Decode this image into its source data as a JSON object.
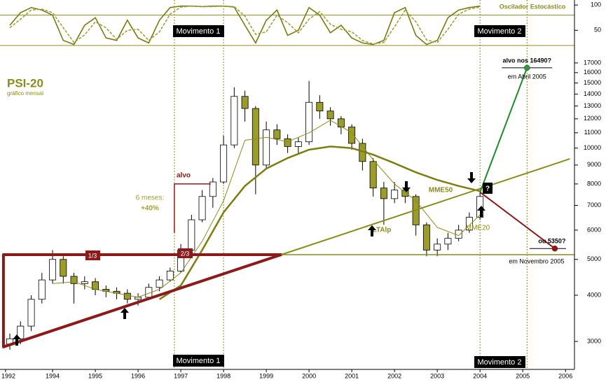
{
  "chart_data": [
    {
      "type": "line",
      "title": "Oscilador Estocástico",
      "x": [
        1993,
        1993.25,
        1993.5,
        1993.75,
        1994,
        1994.25,
        1994.5,
        1994.75,
        1995,
        1995.25,
        1995.5,
        1995.75,
        1996,
        1996.25,
        1996.5,
        1996.75,
        1997,
        1997.25,
        1997.5,
        1997.75,
        1998,
        1998.25,
        1998.5,
        1998.75,
        1999,
        1999.25,
        1999.5,
        1999.75,
        2000,
        2000.25,
        2000.5,
        2000.75,
        2001,
        2001.25,
        2001.5,
        2001.75,
        2002,
        2002.25,
        2002.5,
        2002.75,
        2003,
        2003.25,
        2003.5,
        2003.75,
        2004
      ],
      "series": [
        {
          "color": "#7a7a10",
          "values": [
            60,
            85,
            95,
            90,
            80,
            30,
            22,
            60,
            75,
            35,
            30,
            70,
            35,
            25,
            70,
            95,
            98,
            98,
            97,
            98,
            98,
            96,
            60,
            25,
            70,
            90,
            40,
            50,
            95,
            80,
            45,
            60,
            35,
            25,
            22,
            30,
            85,
            95,
            40,
            22,
            30,
            75,
            90,
            95,
            98
          ]
        },
        {
          "color": "#a0a040",
          "dashed": true,
          "values": [
            55,
            72,
            90,
            92,
            85,
            55,
            26,
            41,
            67,
            55,
            32,
            50,
            52,
            30,
            47,
            82,
            96,
            98,
            97,
            97,
            98,
            97,
            78,
            42,
            47,
            80,
            65,
            45,
            72,
            87,
            62,
            52,
            47,
            30,
            23,
            26,
            57,
            90,
            67,
            31,
            26,
            52,
            82,
            92,
            96
          ]
        }
      ],
      "xlim": [
        1992.77,
        2006.21
      ],
      "ylim": [
        20,
        110
      ],
      "yticks": [
        50,
        100
      ],
      "levels": [
        80
      ]
    },
    {
      "type": "candlestick",
      "title": "PSI-20",
      "subtitle": "gráfico mensal",
      "x": [
        1993,
        1993.25,
        1993.5,
        1993.75,
        1994,
        1994.25,
        1994.5,
        1994.75,
        1995,
        1995.25,
        1995.5,
        1995.75,
        1996,
        1996.25,
        1996.5,
        1996.75,
        1997,
        1997.25,
        1997.5,
        1997.75,
        1998,
        1998.25,
        1998.5,
        1998.75,
        1999,
        1999.25,
        1999.5,
        1999.75,
        2000,
        2000.25,
        2000.5,
        2000.75,
        2001,
        2001.25,
        2001.5,
        2001.75,
        2002,
        2002.25,
        2002.5,
        2002.75,
        2003,
        2003.25,
        2003.5,
        2003.75,
        2004
      ],
      "open": [
        2950,
        3050,
        3300,
        3900,
        4400,
        5000,
        4500,
        4300,
        4350,
        4150,
        4100,
        4050,
        3900,
        3950,
        4200,
        4400,
        4650,
        5300,
        6400,
        7400,
        8100,
        10200,
        13800,
        12800,
        9000,
        11200,
        10600,
        10100,
        10400,
        13300,
        12600,
        12000,
        11400,
        10300,
        9200,
        7800,
        7300,
        7700,
        7400,
        6200,
        5300,
        5500,
        5700,
        6000,
        6500
      ],
      "high": [
        3150,
        3400,
        4000,
        4600,
        5300,
        5100,
        4600,
        4500,
        4450,
        4250,
        4200,
        4150,
        4050,
        4300,
        4500,
        4750,
        5500,
        6600,
        7700,
        8300,
        10800,
        14600,
        14300,
        13000,
        11800,
        11600,
        10900,
        10700,
        15200,
        13900,
        12900,
        12200,
        11600,
        10600,
        9400,
        8100,
        8100,
        8000,
        7500,
        6300,
        5700,
        5900,
        6200,
        6700,
        7700
      ],
      "low": [
        2850,
        2950,
        3200,
        3800,
        4300,
        4300,
        3800,
        4150,
        4000,
        3950,
        3900,
        3800,
        3750,
        3900,
        4100,
        4350,
        4600,
        5200,
        6300,
        6900,
        8000,
        10000,
        11800,
        7500,
        8800,
        10200,
        9700,
        9600,
        10200,
        12000,
        11500,
        10900,
        9900,
        8700,
        7400,
        6200,
        7100,
        7100,
        5800,
        5100,
        5100,
        5300,
        5600,
        5900,
        6400
      ],
      "close": [
        3050,
        3300,
        3900,
        4400,
        5000,
        4500,
        4300,
        4350,
        4150,
        4100,
        4050,
        3900,
        3950,
        4200,
        4400,
        4650,
        5300,
        6400,
        7400,
        8100,
        10200,
        13800,
        12800,
        9000,
        11200,
        10600,
        10100,
        10400,
        13300,
        12600,
        12000,
        11400,
        10300,
        9200,
        7800,
        7300,
        7700,
        7400,
        6200,
        5300,
        5500,
        5700,
        6000,
        6500,
        7400
      ],
      "up_color": "#ffffff",
      "down_color": "#9c9c2a",
      "log_scale": true,
      "xlim": [
        1992.77,
        2006.21
      ],
      "ylim": [
        2520,
        18950
      ],
      "xticks": [
        {
          "value": 1992.9,
          "label": "1992"
        },
        1994,
        1995,
        1996,
        1997,
        1998,
        1999,
        2000,
        2001,
        2002,
        2003,
        2004,
        2005,
        2006
      ],
      "yticks": [
        3000,
        4000,
        5000,
        6000,
        7000,
        8000,
        9000,
        10000,
        11000,
        12000,
        13000,
        14000,
        15000,
        16000,
        17000
      ],
      "moving_averages": [
        {
          "name": "MME20",
          "color": "#8c8c1c",
          "width": 1,
          "x": [
            1994,
            1994.5,
            1995,
            1995.5,
            1996,
            1996.5,
            1997,
            1997.5,
            1998,
            1998.5,
            1999,
            1999.5,
            2000,
            2000.5,
            2001,
            2001.5,
            2002,
            2002.5,
            2003,
            2003.5,
            2004
          ],
          "values": [
            4300,
            4350,
            4150,
            4050,
            3950,
            4150,
            4600,
            5600,
            7200,
            10500,
            10700,
            10400,
            11000,
            11900,
            11000,
            9300,
            8000,
            7200,
            6100,
            5800,
            6600
          ]
        },
        {
          "name": "MME50",
          "color": "#7d7d10",
          "width": 2.5,
          "x": [
            1996.5,
            1997,
            1997.5,
            1998,
            1998.5,
            1999,
            1999.5,
            2000,
            2000.5,
            2001,
            2001.5,
            2002,
            2002.5,
            2003,
            2003.5,
            2004
          ],
          "values": [
            3900,
            4250,
            5300,
            6700,
            7900,
            8800,
            9400,
            9900,
            10100,
            10000,
            9600,
            9100,
            8600,
            8200,
            7900,
            7650
          ]
        }
      ],
      "lines": [
        {
          "color": "#8b1a1a",
          "width": 4,
          "closed": true,
          "x": [
            1992.85,
            1992.85,
            1999.35
          ],
          "values": [
            2900,
            5150,
            5150
          ]
        },
        {
          "color": "#8c8c1c",
          "width": 1.5,
          "x": [
            1999.35,
            2006.21
          ],
          "values": [
            5150,
            5150
          ]
        },
        {
          "color": "#8c8c1c",
          "width": 2,
          "x": [
            1999.35,
            2006.1
          ],
          "values": [
            5150,
            9350
          ]
        },
        {
          "color": "#8b1a1a",
          "width": 1.5,
          "x": [
            1996.85,
            1996.85,
            1997.7
          ],
          "values": [
            5900,
            8000,
            8000
          ]
        },
        {
          "color": "#1e8a2e",
          "width": 2,
          "x": [
            2004.0,
            2005.1
          ],
          "values": [
            7600,
            16490
          ]
        },
        {
          "color": "#8b1a1a",
          "width": 2,
          "x": [
            2004.0,
            2005.75
          ],
          "values": [
            7600,
            5350
          ]
        }
      ],
      "markers_x": [
        1996.85,
        1998.0,
        2004.0,
        2005.1
      ],
      "targets": [
        {
          "label": "alvo nos 16490?",
          "note": "em Abril 2005",
          "x": 2005.1,
          "value": 16490,
          "color": "#2e9a3e"
        },
        {
          "label": "ou 5350?",
          "note": "em Novembro 2005",
          "x": 2005.75,
          "value": 5350,
          "color": "#a01010"
        }
      ],
      "labels": {
        "movement1": "Movimento 1",
        "movement2": "Movimento 2",
        "target": "alvo",
        "months": "6 meses:",
        "gain": "+40%",
        "third1": "1/3",
        "third2": "2/3",
        "trend": "LTAlp",
        "question": "?"
      }
    }
  ]
}
